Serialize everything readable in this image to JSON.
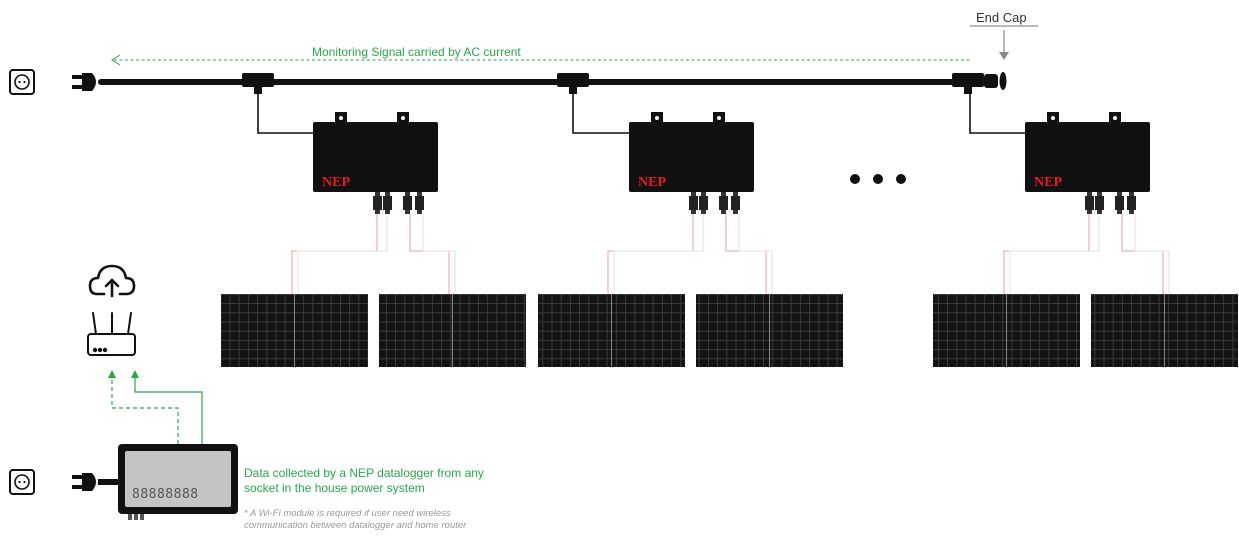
{
  "labels": {
    "end_cap": "End Cap",
    "monitoring_signal": "Monitoring Signal carried by AC current",
    "datalogger_caption": "Data collected by a NEP datalogger from any socket in the house power system",
    "wifi_note": "* A Wi-Fi module is required if user need wireless communication between datalogger and home router",
    "brand": "NEP",
    "display_digits": "88888888"
  },
  "colors": {
    "signal_green": "#2aa84a",
    "brand_red": "#e31c23",
    "cable": "#111111",
    "panel_wire": "#f2b8b8"
  },
  "icons": [
    "wall-socket-icon",
    "ac-plug-icon",
    "cloud-upload-icon",
    "router-icon",
    "ellipsis-icon"
  ]
}
